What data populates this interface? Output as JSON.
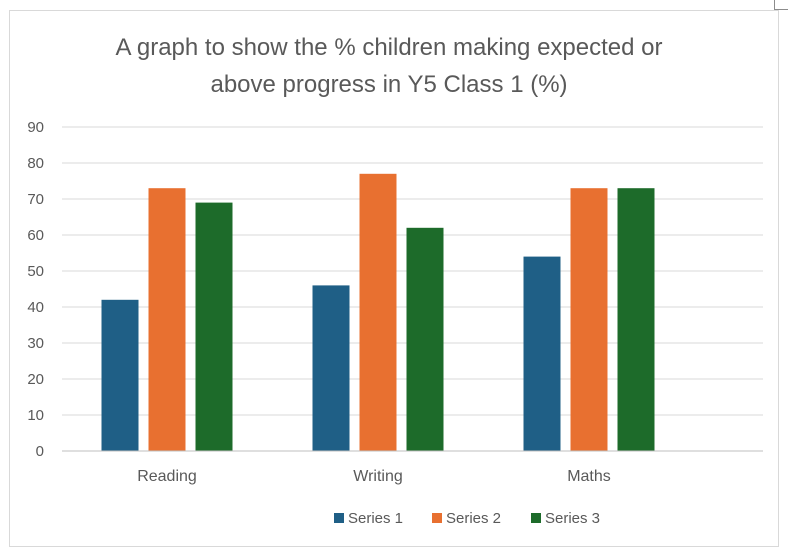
{
  "chart_data": {
    "type": "bar",
    "title_lines": [
      "A graph to show the % children making expected or",
      "above progress in Y5 Class 1 (%)"
    ],
    "categories": [
      "Reading",
      "Writing",
      "Maths"
    ],
    "series": [
      {
        "name": "Series 1",
        "values": [
          42,
          46,
          54
        ],
        "color": "#1f5f86"
      },
      {
        "name": "Series 2",
        "values": [
          73,
          77,
          73
        ],
        "color": "#e87030"
      },
      {
        "name": "Series 3",
        "values": [
          69,
          62,
          73
        ],
        "color": "#1d6b2a"
      }
    ],
    "ylim": [
      0,
      90
    ],
    "yticks": [
      0,
      10,
      20,
      30,
      40,
      50,
      60,
      70,
      80,
      90
    ],
    "xlabel": "",
    "ylabel": "",
    "grid": true,
    "legend_position": "bottom"
  }
}
